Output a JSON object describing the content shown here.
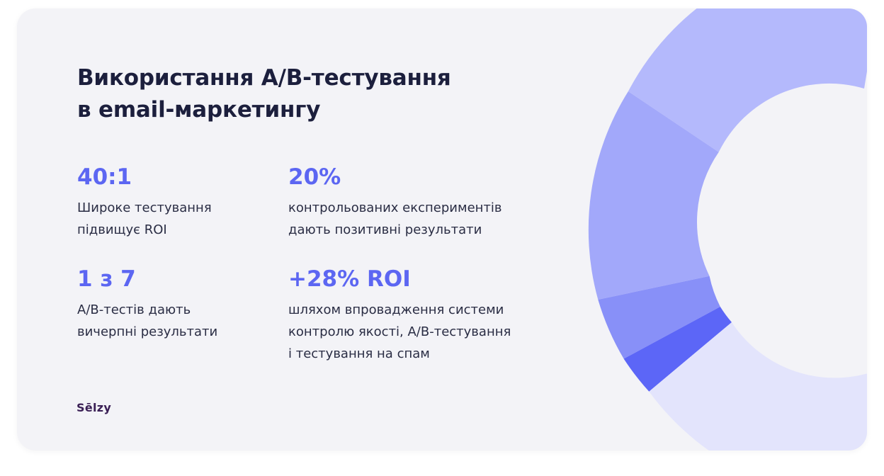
{
  "title": {
    "line1": "Використання A/B-тестування",
    "line2": "в email-маркетингу"
  },
  "stats": [
    {
      "value": "40:1",
      "desc": [
        "Широке тестування",
        "підвищує ROI"
      ]
    },
    {
      "value": "20%",
      "desc": [
        "контрольованих експериментів",
        "дають позитивні результати"
      ]
    },
    {
      "value": "1 з 7",
      "desc": [
        "A/B-тестів дають",
        "вичерпні результати"
      ]
    },
    {
      "value": "+28% ROI",
      "desc": [
        "шляхом впровадження системи",
        "контролю якості, A/B-тестування",
        "і тестування на спам"
      ]
    }
  ],
  "logo": "Sēlzy",
  "colors": {
    "card_background": "#f3f3f7",
    "title": "#1c1f3d",
    "accent": "#5c66f2",
    "text": "#2a2d44",
    "logo": "#3a1f55",
    "donut_segments": [
      "#b4b9fc",
      "#a2a8fa",
      "#8890f8",
      "#5c66f7",
      "#e3e4fc"
    ]
  }
}
